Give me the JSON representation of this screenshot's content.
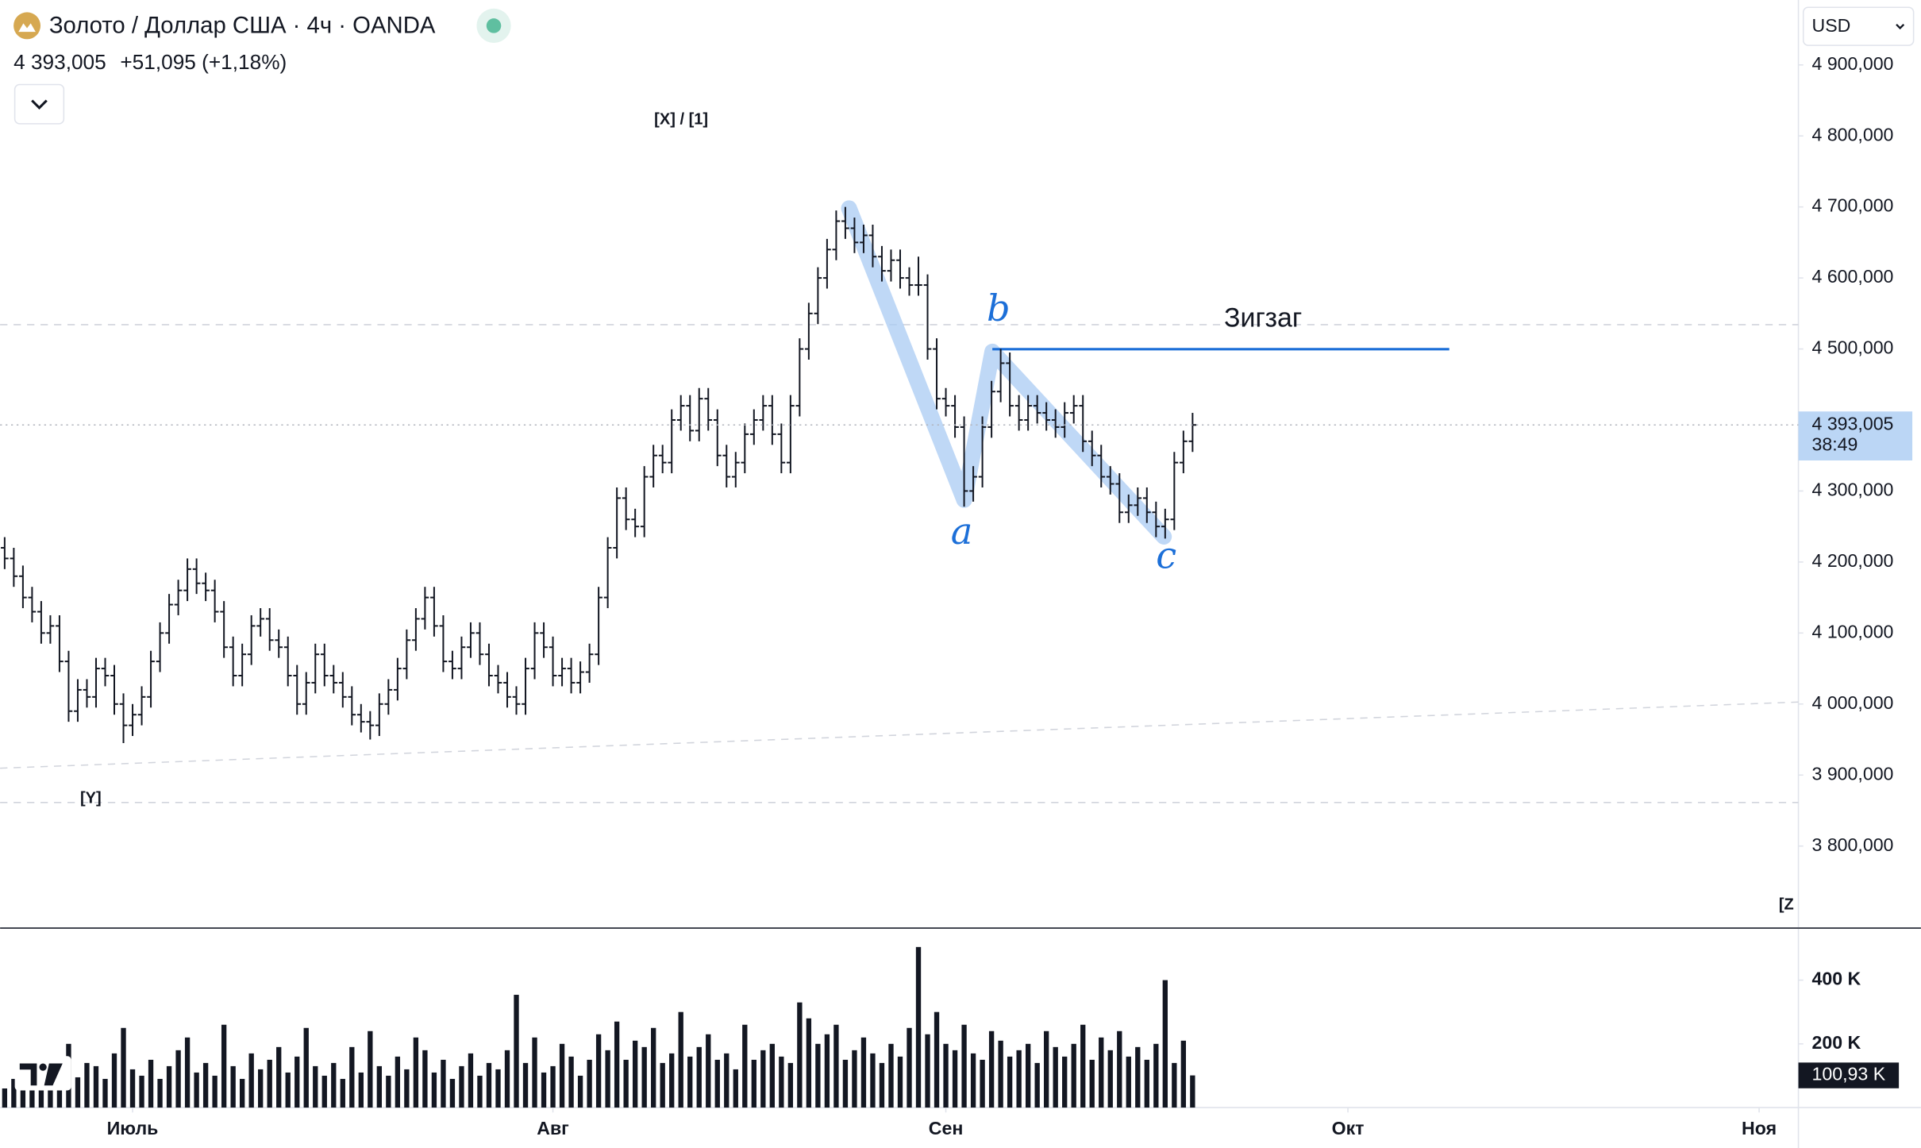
{
  "header": {
    "title": "Золото / Доллар США · 4ч · OANDA",
    "change": "+51,095 (+1,18%)",
    "currency": "USD"
  },
  "chart_data": {
    "type": "ohlc",
    "open": [
      4220,
      4205,
      4180,
      4150,
      4130,
      4100,
      4110,
      4060,
      3990,
      4020,
      4010,
      4050,
      4040,
      4000,
      3970,
      3985,
      4010,
      4060,
      4100,
      4140,
      4160,
      4190,
      4170,
      4160,
      4130,
      4080,
      4040,
      4070,
      4110,
      4120,
      4090,
      4080,
      4040,
      4000,
      4030,
      4070,
      4040,
      4030,
      4010,
      3985,
      3975,
      3970,
      4000,
      4020,
      4050,
      4090,
      4120,
      4150,
      4110,
      4060,
      4050,
      4080,
      4100,
      4070,
      4040,
      4030,
      4010,
      4000,
      4050,
      4100,
      4080,
      4040,
      4050,
      4030,
      4045,
      4070,
      4150,
      4220,
      4290,
      4260,
      4250,
      4320,
      4350,
      4340,
      4400,
      4420,
      4385,
      4430,
      4400,
      4350,
      4320,
      4340,
      4380,
      4400,
      4420,
      4380,
      4340,
      4420,
      4500,
      4550,
      4600,
      4640,
      4680,
      4670,
      4650,
      4660,
      4630,
      4610,
      4625,
      4600,
      4590,
      4590,
      4500,
      4430,
      4420,
      4390,
      4300,
      4320,
      4390,
      4440,
      4480,
      4420,
      4400,
      4420,
      4410,
      4400,
      4390,
      4410,
      4420,
      4370,
      4350,
      4320,
      4310,
      4270,
      4280,
      4290,
      4270,
      4250,
      4260,
      4340,
      4370
    ],
    "high": [
      4235,
      4220,
      4195,
      4165,
      4145,
      4125,
      4125,
      4075,
      4035,
      4035,
      4065,
      4065,
      4055,
      4015,
      4000,
      4025,
      4075,
      4115,
      4155,
      4175,
      4205,
      4205,
      4185,
      4175,
      4145,
      4095,
      4085,
      4125,
      4135,
      4135,
      4105,
      4095,
      4055,
      4045,
      4085,
      4085,
      4055,
      4045,
      4025,
      4000,
      3990,
      4015,
      4035,
      4065,
      4105,
      4135,
      4165,
      4165,
      4125,
      4075,
      4095,
      4115,
      4115,
      4085,
      4055,
      4045,
      4025,
      4065,
      4115,
      4115,
      4095,
      4065,
      4065,
      4060,
      4085,
      4165,
      4235,
      4305,
      4305,
      4275,
      4335,
      4365,
      4365,
      4415,
      4435,
      4435,
      4445,
      4445,
      4415,
      4365,
      4355,
      4395,
      4415,
      4435,
      4435,
      4395,
      4435,
      4515,
      4565,
      4615,
      4655,
      4695,
      4700,
      4685,
      4675,
      4675,
      4645,
      4640,
      4640,
      4615,
      4630,
      4605,
      4515,
      4445,
      4435,
      4405,
      4335,
      4405,
      4455,
      4500,
      4495,
      4435,
      4435,
      4435,
      4425,
      4415,
      4425,
      4435,
      4435,
      4385,
      4365,
      4335,
      4325,
      4295,
      4305,
      4305,
      4285,
      4275,
      4355,
      4385,
      4410
    ],
    "low": [
      4190,
      4165,
      4135,
      4115,
      4085,
      4085,
      4045,
      3975,
      3975,
      3995,
      3995,
      4025,
      3985,
      3945,
      3955,
      3970,
      3995,
      4045,
      4085,
      4125,
      4145,
      4155,
      4145,
      4115,
      4065,
      4025,
      4025,
      4055,
      4095,
      4075,
      4065,
      4025,
      3985,
      3985,
      4015,
      4025,
      4015,
      3995,
      3970,
      3960,
      3950,
      3955,
      3985,
      4005,
      4035,
      4075,
      4105,
      4095,
      4045,
      4035,
      4035,
      4065,
      4055,
      4025,
      4015,
      3995,
      3985,
      3985,
      4035,
      4065,
      4025,
      4025,
      4015,
      4015,
      4030,
      4055,
      4135,
      4205,
      4245,
      4235,
      4235,
      4305,
      4325,
      4325,
      4385,
      4370,
      4370,
      4385,
      4335,
      4305,
      4305,
      4325,
      4365,
      4385,
      4365,
      4325,
      4325,
      4405,
      4485,
      4535,
      4585,
      4625,
      4655,
      4635,
      4635,
      4615,
      4595,
      4595,
      4585,
      4575,
      4575,
      4485,
      4415,
      4405,
      4375,
      4278,
      4285,
      4305,
      4375,
      4425,
      4405,
      4385,
      4385,
      4395,
      4385,
      4375,
      4375,
      4395,
      4355,
      4335,
      4305,
      4295,
      4255,
      4255,
      4265,
      4255,
      4235,
      4233,
      4245,
      4325,
      4355
    ],
    "close": [
      4205,
      4180,
      4150,
      4130,
      4100,
      4110,
      4060,
      3990,
      4020,
      4010,
      4050,
      4040,
      4000,
      3970,
      3985,
      4010,
      4060,
      4100,
      4140,
      4160,
      4190,
      4170,
      4160,
      4130,
      4080,
      4040,
      4070,
      4110,
      4120,
      4090,
      4080,
      4040,
      4000,
      4030,
      4070,
      4040,
      4030,
      4010,
      3985,
      3975,
      3970,
      4000,
      4020,
      4050,
      4090,
      4120,
      4150,
      4110,
      4060,
      4050,
      4080,
      4100,
      4070,
      4040,
      4030,
      4010,
      4000,
      4050,
      4100,
      4080,
      4040,
      4050,
      4030,
      4045,
      4070,
      4150,
      4220,
      4290,
      4260,
      4250,
      4320,
      4350,
      4340,
      4400,
      4420,
      4385,
      4430,
      4400,
      4350,
      4320,
      4340,
      4380,
      4400,
      4420,
      4380,
      4340,
      4420,
      4500,
      4550,
      4600,
      4640,
      4680,
      4670,
      4650,
      4660,
      4630,
      4610,
      4625,
      4600,
      4590,
      4590,
      4500,
      4430,
      4420,
      4390,
      4300,
      4320,
      4390,
      4440,
      4480,
      4420,
      4400,
      4420,
      4410,
      4400,
      4390,
      4410,
      4420,
      4370,
      4350,
      4320,
      4310,
      4270,
      4280,
      4290,
      4270,
      4250,
      4260,
      4340,
      4370,
      4393.005
    ],
    "color": "#131722",
    "xlim": [
      -0.5,
      196.3
    ],
    "xticks": [
      {
        "value": 14,
        "label": "Июль"
      },
      {
        "value": 60,
        "label": "Авг"
      },
      {
        "value": 103,
        "label": "Сен"
      },
      {
        "value": 147,
        "label": "Окт"
      },
      {
        "value": 192,
        "label": "Ноя"
      }
    ],
    "ylim": [
      3684.5,
      4991.4
    ],
    "yticks": [
      {
        "value": 3800,
        "label": "3 800,000"
      },
      {
        "value": 3900,
        "label": "3 900,000"
      },
      {
        "value": 4000,
        "label": "4 000,000"
      },
      {
        "value": 4100,
        "label": "4 100,000"
      },
      {
        "value": 4200,
        "label": "4 200,000"
      },
      {
        "value": 4300,
        "label": "4 300,000"
      },
      {
        "value": 4400,
        "label": "4 400,000"
      },
      {
        "value": 4500,
        "label": "4 500,000"
      },
      {
        "value": 4600,
        "label": "4 600,000"
      },
      {
        "value": 4700,
        "label": "4 700,000"
      },
      {
        "value": 4800,
        "label": "4 800,000"
      },
      {
        "value": 4900,
        "label": "4 900,000"
      }
    ],
    "last_price": {
      "value": 4393.005,
      "label": "4 393,005",
      "countdown": "38:49"
    },
    "annotations": {
      "top": "[X] / [1]",
      "left": "[Y]",
      "right": "[Z",
      "pattern": "Зигзаг",
      "wave_a": "a",
      "wave_b": "b",
      "wave_c": "c"
    },
    "volume": {
      "values": [
        60,
        90,
        120,
        70,
        150,
        80,
        110,
        200,
        95,
        140,
        130,
        90,
        170,
        250,
        120,
        100,
        150,
        90,
        130,
        180,
        220,
        110,
        140,
        100,
        260,
        130,
        90,
        170,
        120,
        150,
        190,
        110,
        160,
        250,
        130,
        100,
        140,
        90,
        190,
        110,
        240,
        130,
        100,
        160,
        120,
        220,
        180,
        110,
        150,
        90,
        130,
        170,
        100,
        140,
        120,
        180,
        354,
        140,
        220,
        110,
        130,
        200,
        160,
        100,
        150,
        230,
        180,
        270,
        150,
        210,
        190,
        250,
        140,
        170,
        300,
        160,
        190,
        230,
        150,
        170,
        120,
        260,
        150,
        180,
        200,
        160,
        140,
        330,
        280,
        200,
        230,
        260,
        150,
        180,
        220,
        170,
        140,
        200,
        160,
        250,
        504,
        230,
        300,
        200,
        180,
        260,
        170,
        150,
        240,
        210,
        160,
        180,
        200,
        140,
        240,
        190,
        160,
        200,
        260,
        150,
        220,
        180,
        240,
        160,
        190,
        150,
        200,
        400,
        140,
        210,
        100.93
      ],
      "last_label": "100,93 K",
      "color": "#131722",
      "ylim": [
        0,
        561.5
      ],
      "yticks": [
        {
          "value": 200,
          "label": "200 K"
        },
        {
          "value": 400,
          "label": "400 K"
        }
      ]
    }
  }
}
